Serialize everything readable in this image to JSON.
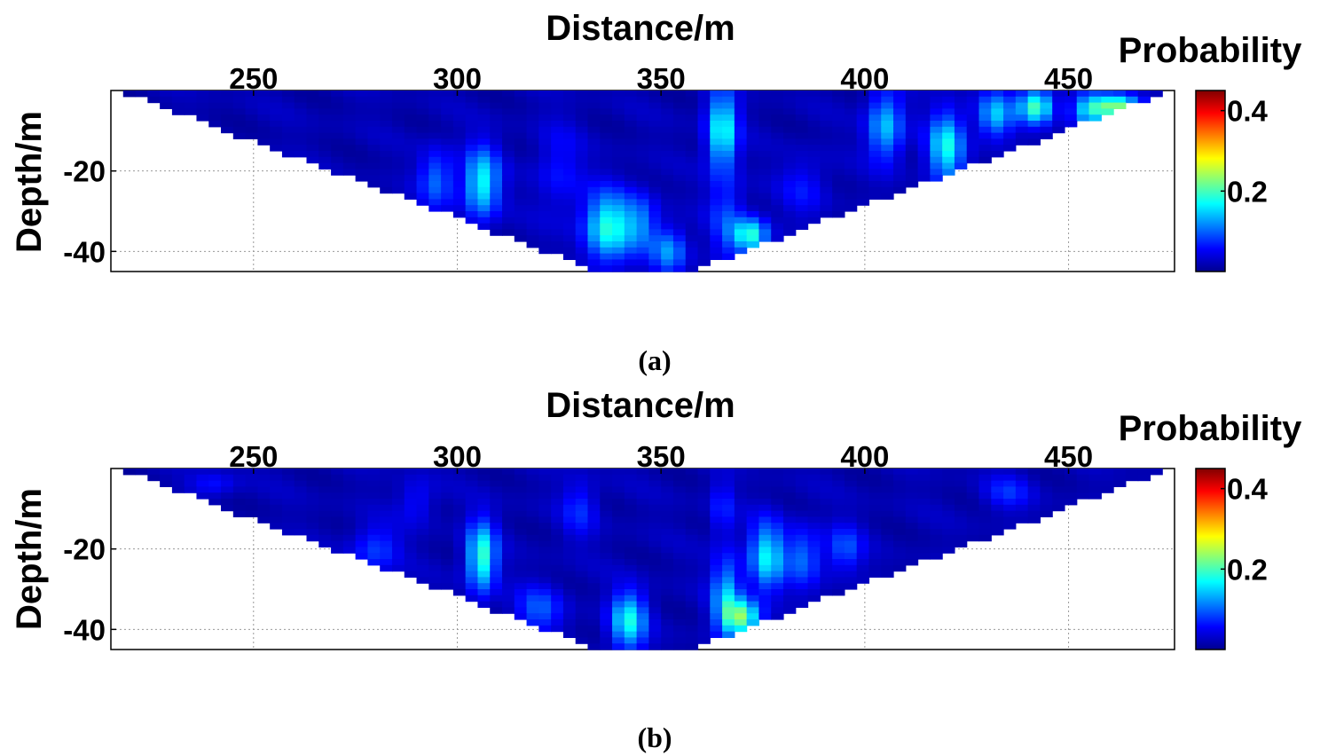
{
  "figure": {
    "panels": [
      {
        "caption": "(a)"
      },
      {
        "caption": "(b)"
      }
    ]
  },
  "chart_data": [
    {
      "type": "heatmap",
      "panel": "(a)",
      "title": "",
      "xlabel": "Distance/m",
      "ylabel": "Depth/m",
      "colorbar_label": "Probability",
      "xlim": [
        215,
        476
      ],
      "ylim": [
        -45,
        0
      ],
      "xticks": [
        250,
        300,
        350,
        400,
        450
      ],
      "xtick_labels": [
        "250",
        "300",
        "350",
        "400",
        "450"
      ],
      "yticks": [
        -20,
        -40
      ],
      "ytick_labels": [
        "-20",
        "-40"
      ],
      "clim": [
        0,
        0.45
      ],
      "colorbar_ticks": [
        0.2,
        0.4
      ],
      "colorbar_tick_labels": [
        "0.2",
        "0.4"
      ],
      "colormap": "jet",
      "grid": true,
      "domain_shape": "inverted-triangle",
      "domain": {
        "top_left_x": 217,
        "top_right_x": 475,
        "bottom_left_x": 335,
        "bottom_right_x": 357,
        "bottom_depth": -45
      },
      "anomalies": [
        {
          "x": 306,
          "depth": -23,
          "sx": 3,
          "sy": 6,
          "p": 0.15
        },
        {
          "x": 295,
          "depth": -22,
          "sx": 3,
          "sy": 5,
          "p": 0.08
        },
        {
          "x": 337,
          "depth": -34,
          "sx": 4,
          "sy": 6,
          "p": 0.16
        },
        {
          "x": 345,
          "depth": -33,
          "sx": 3,
          "sy": 5,
          "p": 0.08
        },
        {
          "x": 352,
          "depth": -40,
          "sx": 3,
          "sy": 4,
          "p": 0.1
        },
        {
          "x": 365,
          "depth": -10,
          "sx": 2.5,
          "sy": 7,
          "p": 0.16
        },
        {
          "x": 366,
          "depth": -32,
          "sx": 3,
          "sy": 7,
          "p": 0.06
        },
        {
          "x": 372,
          "depth": -36,
          "sx": 3,
          "sy": 3,
          "p": 0.16
        },
        {
          "x": 405,
          "depth": -9,
          "sx": 3,
          "sy": 6,
          "p": 0.12
        },
        {
          "x": 420,
          "depth": -14,
          "sx": 3,
          "sy": 6,
          "p": 0.15
        },
        {
          "x": 432,
          "depth": -6,
          "sx": 3,
          "sy": 4,
          "p": 0.12
        },
        {
          "x": 442,
          "depth": -4,
          "sx": 3,
          "sy": 3,
          "p": 0.18
        },
        {
          "x": 462,
          "depth": -4,
          "sx": 4,
          "sy": 2,
          "p": 0.2
        },
        {
          "x": 455,
          "depth": -5,
          "sx": 3,
          "sy": 3,
          "p": 0.12
        },
        {
          "x": 325,
          "depth": -20,
          "sx": 4,
          "sy": 8,
          "p": 0.04
        },
        {
          "x": 385,
          "depth": -24,
          "sx": 4,
          "sy": 5,
          "p": 0.04
        }
      ]
    },
    {
      "type": "heatmap",
      "panel": "(b)",
      "title": "",
      "xlabel": "Distance/m",
      "ylabel": "Depth/m",
      "colorbar_label": "Probability",
      "xlim": [
        215,
        476
      ],
      "ylim": [
        -45,
        0
      ],
      "xticks": [
        250,
        300,
        350,
        400,
        450
      ],
      "xtick_labels": [
        "250",
        "300",
        "350",
        "400",
        "450"
      ],
      "yticks": [
        -20,
        -40
      ],
      "ytick_labels": [
        "-20",
        "-40"
      ],
      "clim": [
        0,
        0.45
      ],
      "colorbar_ticks": [
        0.2,
        0.4
      ],
      "colorbar_tick_labels": [
        "0.2",
        "0.4"
      ],
      "colormap": "jet",
      "grid": true,
      "domain_shape": "inverted-triangle",
      "domain": {
        "top_left_x": 217,
        "top_right_x": 475,
        "bottom_left_x": 335,
        "bottom_right_x": 357,
        "bottom_depth": -45
      },
      "anomalies": [
        {
          "x": 306,
          "depth": -22,
          "sx": 2.5,
          "sy": 6,
          "p": 0.17
        },
        {
          "x": 280,
          "depth": -20,
          "sx": 4,
          "sy": 4,
          "p": 0.06
        },
        {
          "x": 320,
          "depth": -35,
          "sx": 4,
          "sy": 4,
          "p": 0.07
        },
        {
          "x": 342,
          "depth": -38,
          "sx": 3,
          "sy": 5,
          "p": 0.15
        },
        {
          "x": 366,
          "depth": -32,
          "sx": 2.5,
          "sy": 7,
          "p": 0.12
        },
        {
          "x": 370,
          "depth": -37,
          "sx": 3,
          "sy": 3,
          "p": 0.18
        },
        {
          "x": 376,
          "depth": -22,
          "sx": 3,
          "sy": 6,
          "p": 0.14
        },
        {
          "x": 385,
          "depth": -22,
          "sx": 3,
          "sy": 5,
          "p": 0.08
        },
        {
          "x": 395,
          "depth": -20,
          "sx": 3,
          "sy": 4,
          "p": 0.07
        },
        {
          "x": 365,
          "depth": -10,
          "sx": 2,
          "sy": 5,
          "p": 0.05
        },
        {
          "x": 330,
          "depth": -10,
          "sx": 3,
          "sy": 5,
          "p": 0.05
        },
        {
          "x": 435,
          "depth": -6,
          "sx": 4,
          "sy": 3,
          "p": 0.05
        },
        {
          "x": 240,
          "depth": -4,
          "sx": 4,
          "sy": 2,
          "p": 0.04
        },
        {
          "x": 290,
          "depth": -8,
          "sx": 3,
          "sy": 4,
          "p": 0.04
        }
      ]
    }
  ]
}
